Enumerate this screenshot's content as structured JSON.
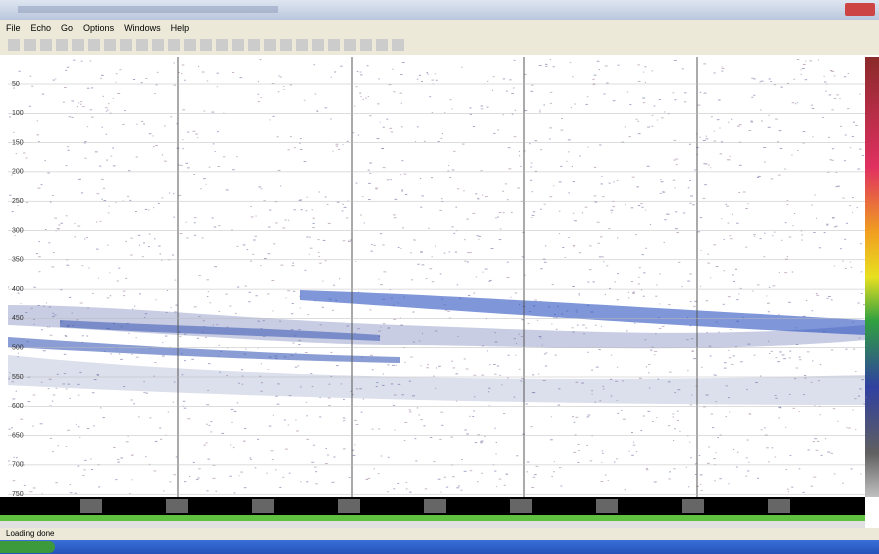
{
  "menu": [
    "File",
    "Echo",
    "Go",
    "Options",
    "Windows",
    "Help"
  ],
  "echogram": {
    "depth_labels": [
      "50",
      "100",
      "150",
      "200",
      "250",
      "300",
      "350",
      "400",
      "450",
      "500",
      "550",
      "600",
      "650",
      "700",
      "750"
    ]
  },
  "status": {
    "left": "Loading done"
  }
}
